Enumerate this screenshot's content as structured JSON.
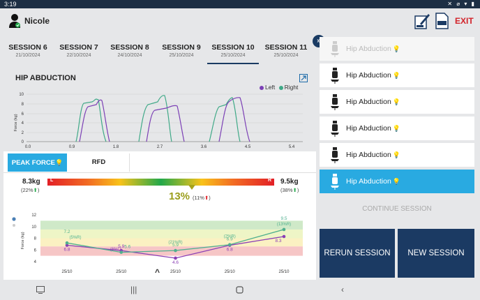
{
  "status": {
    "time": "3:19",
    "system_icons": "✕ ⌀ ▾ ▮"
  },
  "header": {
    "user_name": "Nicole",
    "exit_label": "EXIT"
  },
  "sessions": [
    {
      "name": "SESSION 6",
      "date": "21/10/2024"
    },
    {
      "name": "SESSION 7",
      "date": "22/10/2024"
    },
    {
      "name": "SESSION 8",
      "date": "24/10/2024"
    },
    {
      "name": "SESSION 9",
      "date": "25/10/2024"
    },
    {
      "name": "SESSION 10",
      "date": "25/10/2024",
      "active": true
    },
    {
      "name": "SESSION 11",
      "date": "25/10/2024"
    }
  ],
  "force_chart": {
    "title": "HIP ABDUCTION",
    "ylabel": "Force (kg)",
    "legend_left": "Left",
    "legend_right": "Right",
    "color_left": "#7b3fb5",
    "color_right": "#3fa987",
    "yticks": [
      "10",
      "8",
      "6",
      "4",
      "2",
      "0"
    ],
    "xticks": [
      "0.0",
      "0.9",
      "1.8",
      "2.7",
      "3.6",
      "4.5",
      "5.4"
    ]
  },
  "metric_tabs": {
    "peak_force": "PEAK FORCE",
    "rfd": "RFD"
  },
  "asymmetry": {
    "left_value": "8.3kg",
    "left_sub": "(22%",
    "right_value": "9.5kg",
    "right_sub": "(38%",
    "bar_left": "L",
    "bar_right": "R",
    "asym_value": "13%",
    "asym_sub": "(11%"
  },
  "chart_data": {
    "type": "line",
    "ylabel": "Force (kg)",
    "ylim": [
      4,
      12
    ],
    "yticks": [
      "12",
      "10",
      "8",
      "6",
      "4"
    ],
    "categories": [
      "25/10",
      "25/10",
      "25/10",
      "25/10",
      "25/10"
    ],
    "series": [
      {
        "values": [
          6.8,
          5.9,
          4.6,
          6.8,
          8.3
        ],
        "color": "#8a3fb5"
      },
      {
        "values": [
          7.2,
          5.6,
          5.9,
          6.9,
          9.5
        ],
        "color": "#4fb08e"
      }
    ],
    "labels_left": [
      "6.8",
      "5.9",
      "4.6",
      "6.8",
      "8.3"
    ],
    "labels_right": [
      "7.2",
      "5.6",
      "5.9",
      "6.9",
      "9.5"
    ],
    "annotations": [
      "(5%R)",
      "(6%L)",
      "(21%R)",
      "(2%R)",
      "(13%R)"
    ],
    "bands": [
      {
        "from": 9.5,
        "to": 11,
        "color": "#cfe9c8"
      },
      {
        "from": 8,
        "to": 9.5,
        "color": "#eef5c6"
      },
      {
        "from": 6.6,
        "to": 8,
        "color": "#fbf1c2"
      },
      {
        "from": 5,
        "to": 6.6,
        "color": "#f6c6c6"
      }
    ]
  },
  "exercise_list": [
    {
      "label": "Hip Abduction",
      "state": "faded"
    },
    {
      "label": "Hip Abduction",
      "state": "normal"
    },
    {
      "label": "Hip Abduction",
      "state": "normal"
    },
    {
      "label": "Hip Abduction",
      "state": "normal"
    },
    {
      "label": "Hip Abduction",
      "state": "normal"
    },
    {
      "label": "Hip Abduction",
      "state": "active"
    }
  ],
  "actions": {
    "continue_label": "CONTINUE SESSION",
    "rerun_label": "RERUN SESSION",
    "new_label": "NEW SESSION"
  }
}
